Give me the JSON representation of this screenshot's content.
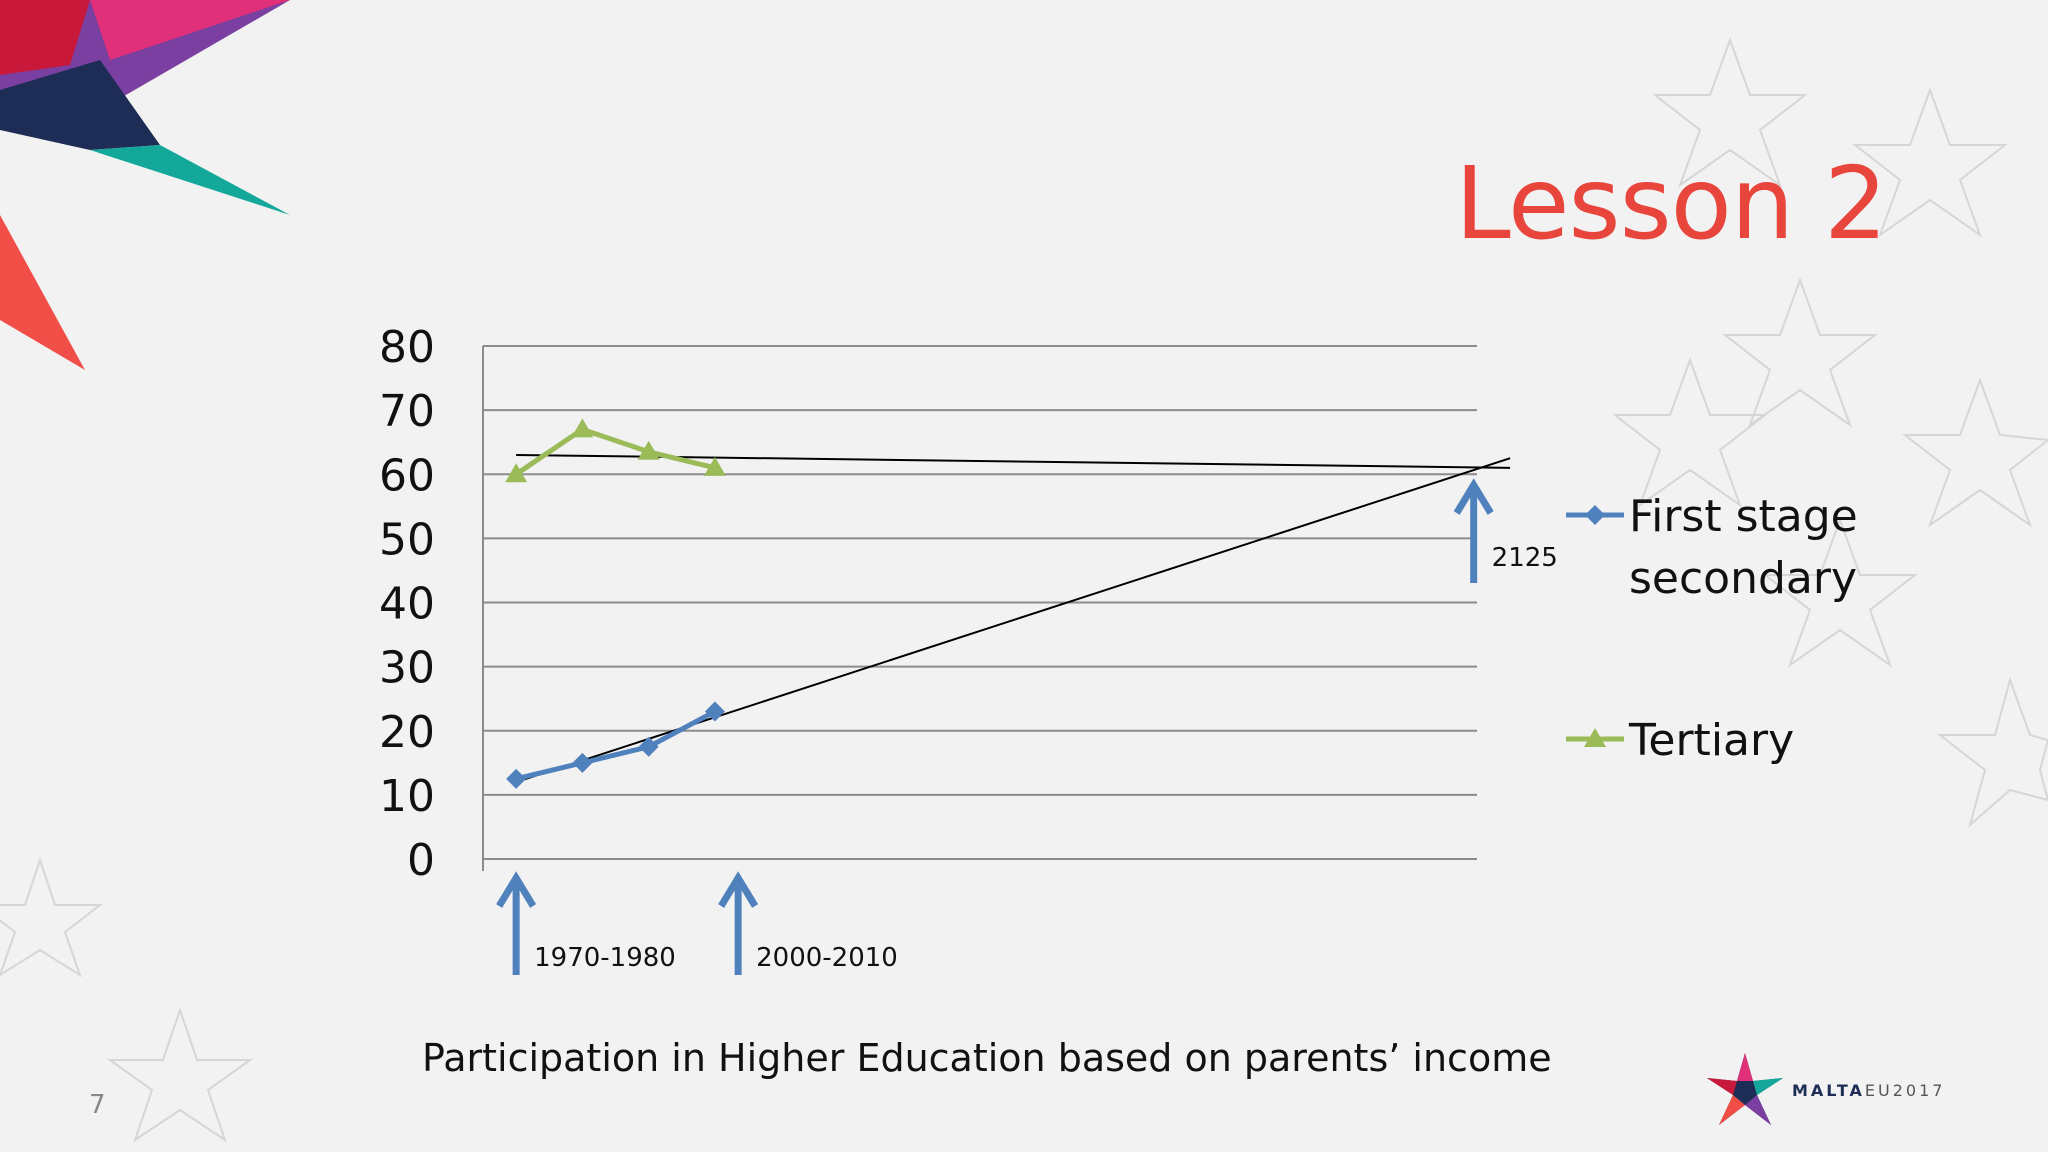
{
  "slide": {
    "title": "Lesson 2",
    "caption": "Participation in Higher Education based on parents’ income",
    "page_number": "7",
    "logo_text_strong": "MALTA",
    "logo_text_light": "EU2017",
    "accent_color": "#e8453c"
  },
  "chart_data": {
    "type": "line",
    "title": "",
    "xlabel": "",
    "ylabel": "",
    "ylim": [
      0,
      80
    ],
    "yticks": [
      0,
      10,
      20,
      30,
      40,
      50,
      60,
      70,
      80
    ],
    "grid": true,
    "legend_position": "right",
    "series": [
      {
        "name": "First stage secondary",
        "name_lines": [
          "First stage",
          "secondary"
        ],
        "color": "#4f81bd",
        "marker": "diamond",
        "values": [
          12.5,
          15,
          17.5,
          23
        ]
      },
      {
        "name": "Tertiary",
        "name_lines": [
          "Tertiary"
        ],
        "color": "#9bbb59",
        "marker": "triangle",
        "values": [
          60,
          67,
          63.5,
          61
        ]
      }
    ],
    "trendlines": [
      {
        "color": "#000000",
        "from": [
          0,
          12
        ],
        "to": [
          15,
          62.5
        ]
      },
      {
        "color": "#000000",
        "from": [
          0,
          63
        ],
        "to": [
          15,
          61
        ]
      }
    ],
    "x_slots": 15,
    "annotations": [
      {
        "label": "1970-1980",
        "x_index": 0,
        "color": "#4f81bd"
      },
      {
        "label": "2000-2010",
        "x_index": 3.35,
        "color": "#4f81bd"
      },
      {
        "label": "2125",
        "x_index": 14.45,
        "color": "#4f81bd"
      }
    ]
  }
}
